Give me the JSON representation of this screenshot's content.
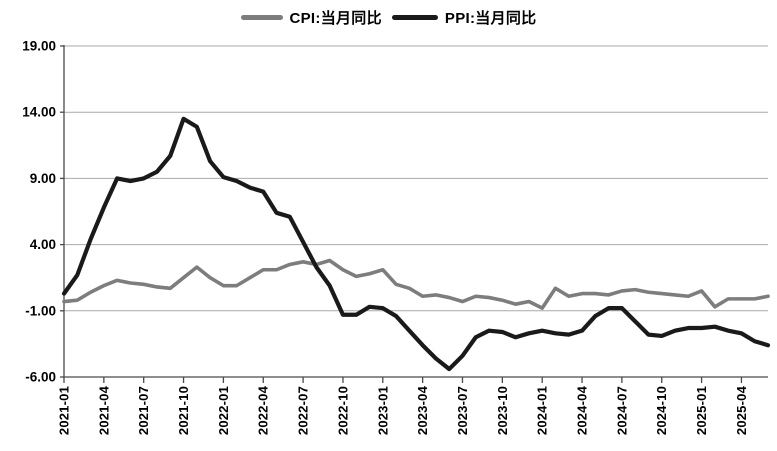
{
  "legend": {
    "items": [
      {
        "id": "cpi",
        "label": "CPI:当月同比",
        "color": "#7d7d7d"
      },
      {
        "id": "ppi",
        "label": "PPI:当月同比",
        "color": "#1a1a1a"
      }
    ]
  },
  "chart_data": {
    "type": "line",
    "x": [
      "2021-01",
      "2021-02",
      "2021-03",
      "2021-04",
      "2021-05",
      "2021-06",
      "2021-07",
      "2021-08",
      "2021-09",
      "2021-10",
      "2021-11",
      "2021-12",
      "2022-01",
      "2022-02",
      "2022-03",
      "2022-04",
      "2022-05",
      "2022-06",
      "2022-07",
      "2022-08",
      "2022-09",
      "2022-10",
      "2022-11",
      "2022-12",
      "2023-01",
      "2023-02",
      "2023-03",
      "2023-04",
      "2023-05",
      "2023-06",
      "2023-07",
      "2023-08",
      "2023-09",
      "2023-10",
      "2023-11",
      "2023-12",
      "2024-01",
      "2024-02",
      "2024-03",
      "2024-04",
      "2024-05",
      "2024-06",
      "2024-07",
      "2024-08",
      "2024-09",
      "2024-10",
      "2024-11",
      "2024-12",
      "2025-01",
      "2025-02",
      "2025-03",
      "2025-04",
      "2025-05",
      "2025-06"
    ],
    "series": [
      {
        "name": "CPI:当月同比",
        "color": "#7d7d7d",
        "values": [
          -0.3,
          -0.2,
          0.4,
          0.9,
          1.3,
          1.1,
          1.0,
          0.8,
          0.7,
          1.5,
          2.3,
          1.5,
          0.9,
          0.9,
          1.5,
          2.1,
          2.1,
          2.5,
          2.7,
          2.5,
          2.8,
          2.1,
          1.6,
          1.8,
          2.1,
          1.0,
          0.7,
          0.1,
          0.2,
          0.0,
          -0.3,
          0.1,
          0.0,
          -0.2,
          -0.5,
          -0.3,
          -0.8,
          0.7,
          0.1,
          0.3,
          0.3,
          0.2,
          0.5,
          0.6,
          0.4,
          0.3,
          0.2,
          0.1,
          0.5,
          -0.7,
          -0.1,
          -0.1,
          -0.1,
          0.1
        ]
      },
      {
        "name": "PPI:当月同比",
        "color": "#1a1a1a",
        "values": [
          0.3,
          1.7,
          4.4,
          6.8,
          9.0,
          8.8,
          9.0,
          9.5,
          10.7,
          13.5,
          12.9,
          10.3,
          9.1,
          8.8,
          8.3,
          8.0,
          6.4,
          6.1,
          4.2,
          2.3,
          0.9,
          -1.3,
          -1.3,
          -0.7,
          -0.8,
          -1.4,
          -2.5,
          -3.6,
          -4.6,
          -5.4,
          -4.4,
          -3.0,
          -2.5,
          -2.6,
          -3.0,
          -2.7,
          -2.5,
          -2.7,
          -2.8,
          -2.5,
          -1.4,
          -0.8,
          -0.8,
          -1.8,
          -2.8,
          -2.9,
          -2.5,
          -2.3,
          -2.3,
          -2.2,
          -2.5,
          -2.7,
          -3.3,
          -3.6
        ]
      }
    ],
    "ylim": [
      -6,
      19
    ],
    "yticks": [
      19,
      14,
      9,
      4,
      -1,
      -6
    ],
    "ytick_labels": [
      "19.00",
      "14.00",
      "9.00",
      "4.00",
      "-1.00",
      "-6.00"
    ],
    "xtick_interval": 3,
    "grid": true,
    "legend_position": "top center",
    "colors": {
      "grid": "#a9a9a9",
      "axis": "#4a4a4a",
      "label": "#000000"
    }
  }
}
